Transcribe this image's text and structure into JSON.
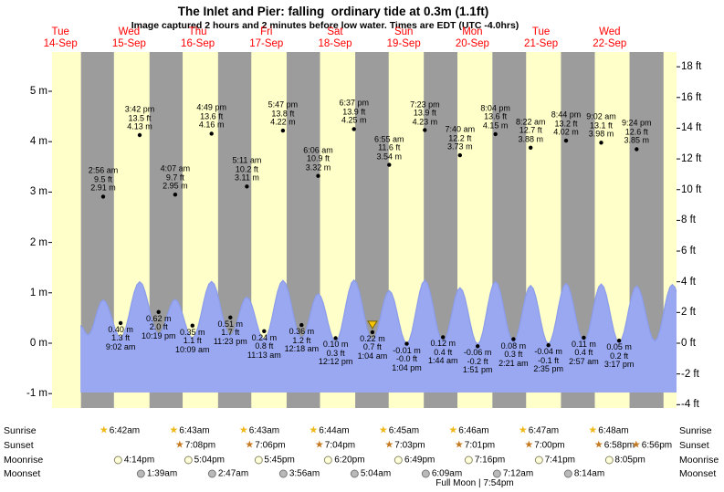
{
  "title": "The Inlet and Pier: falling  ordinary tide at 0.3m (1.1ft)",
  "subtitle": "Image captured 2 hours and 2 minutes before low water. Times are EDT (UTC -4.0hrs)",
  "days": [
    {
      "name": "Tue",
      "date": "14-Sep"
    },
    {
      "name": "Wed",
      "date": "15-Sep"
    },
    {
      "name": "Thu",
      "date": "16-Sep"
    },
    {
      "name": "Fri",
      "date": "17-Sep"
    },
    {
      "name": "Sat",
      "date": "18-Sep"
    },
    {
      "name": "Sun",
      "date": "19-Sep"
    },
    {
      "name": "Mon",
      "date": "20-Sep"
    },
    {
      "name": "Tue",
      "date": "21-Sep"
    },
    {
      "name": "Wed",
      "date": "22-Sep"
    }
  ],
  "chart_data": {
    "type": "area",
    "series_name": "tide height",
    "y_axis_left_labels": [
      "5 m",
      "4 m",
      "3 m",
      "2 m",
      "1 m",
      "0 m",
      "-1 m"
    ],
    "y_axis_right_labels": [
      "18 ft",
      "16 ft",
      "14 ft",
      "12 ft",
      "10 ft",
      "8 ft",
      "6 ft",
      "4 ft",
      "2 ft",
      "0 ft",
      "-2 ft",
      "-4 ft"
    ],
    "high_tides": [
      {
        "day_index": 1,
        "time": "2:56 am",
        "ft": "9.5 ft",
        "m": "2.91 m"
      },
      {
        "day_index": 1,
        "time": "3:42 pm",
        "ft": "13.5 ft",
        "m": "4.13 m"
      },
      {
        "day_index": 2,
        "time": "4:07 am",
        "ft": "9.7 ft",
        "m": "2.95 m"
      },
      {
        "day_index": 2,
        "time": "4:49 pm",
        "ft": "13.6 ft",
        "m": "4.16 m"
      },
      {
        "day_index": 3,
        "time": "5:11 am",
        "ft": "10.2 ft",
        "m": "3.11 m"
      },
      {
        "day_index": 3,
        "time": "5:47 pm",
        "ft": "13.8 ft",
        "m": "4.22 m"
      },
      {
        "day_index": 4,
        "time": "6:06 am",
        "ft": "10.9 ft",
        "m": "3.32 m"
      },
      {
        "day_index": 4,
        "time": "6:37 pm",
        "ft": "13.9 ft",
        "m": "4.25 m"
      },
      {
        "day_index": 5,
        "time": "6:55 am",
        "ft": "11.6 ft",
        "m": "3.54 m"
      },
      {
        "day_index": 5,
        "time": "7:23 pm",
        "ft": "13.9 ft",
        "m": "4.23 m"
      },
      {
        "day_index": 6,
        "time": "7:40 am",
        "ft": "12.2 ft",
        "m": "3.73 m"
      },
      {
        "day_index": 6,
        "time": "8:04 pm",
        "ft": "13.6 ft",
        "m": "4.15 m"
      },
      {
        "day_index": 7,
        "time": "8:22 am",
        "ft": "12.7 ft",
        "m": "3.88 m"
      },
      {
        "day_index": 7,
        "time": "8:44 pm",
        "ft": "13.2 ft",
        "m": "4.02 m"
      },
      {
        "day_index": 8,
        "time": "9:02 am",
        "ft": "13.1 ft",
        "m": "3.98 m"
      },
      {
        "day_index": 8,
        "time": "9:24 pm",
        "ft": "12.6 ft",
        "m": "3.85 m"
      }
    ],
    "low_tides": [
      {
        "day_index": 1,
        "time": "9:02 am",
        "ft": "1.3 ft",
        "m": "0.40 m"
      },
      {
        "day_index": 1,
        "time": "10:19 pm",
        "ft": "2.0 ft",
        "m": "0.62 m"
      },
      {
        "day_index": 2,
        "time": "10:09 am",
        "ft": "1.1 ft",
        "m": "0.35 m"
      },
      {
        "day_index": 2,
        "time": "11:23 pm",
        "ft": "1.7 ft",
        "m": "0.51 m"
      },
      {
        "day_index": 3,
        "time": "11:13 am",
        "ft": "0.8 ft",
        "m": "0.24 m"
      },
      {
        "day_index": 4,
        "time": "12:18 am",
        "ft": "1.2 ft",
        "m": "0.36 m"
      },
      {
        "day_index": 4,
        "time": "12:12 pm",
        "ft": "0.3 ft",
        "m": "0.10 m"
      },
      {
        "day_index": 5,
        "time": "1:04 am",
        "ft": "0.7 ft",
        "m": "0.22 m",
        "current": true
      },
      {
        "day_index": 5,
        "time": "1:04 pm",
        "ft": "-0.0 ft",
        "m": "-0.01 m"
      },
      {
        "day_index": 6,
        "time": "1:44 am",
        "ft": "0.4 ft",
        "m": "0.12 m"
      },
      {
        "day_index": 6,
        "time": "1:51 pm",
        "ft": "-0.2 ft",
        "m": "-0.06 m"
      },
      {
        "day_index": 7,
        "time": "2:21 am",
        "ft": "0.3 ft",
        "m": "0.08 m"
      },
      {
        "day_index": 7,
        "time": "2:35 pm",
        "ft": "-0.1 ft",
        "m": "-0.04 m"
      },
      {
        "day_index": 8,
        "time": "2:57 am",
        "ft": "0.4 ft",
        "m": "0.11 m"
      },
      {
        "day_index": 8,
        "time": "3:17 pm",
        "ft": "0.2 ft",
        "m": "0.05 m"
      }
    ],
    "curve_shape_points": {
      "before": [
        {
          "day_index": 0,
          "hour": 19.0,
          "height_m": 1.2
        },
        {
          "day_index": 0,
          "hour": 21.6,
          "height_m": 0.55
        }
      ],
      "after": [
        {
          "day_index": 9,
          "hour": 3.8,
          "height_m": 0.15
        },
        {
          "day_index": 9,
          "hour": 9.9,
          "height_m": 3.95
        },
        {
          "day_index": 9,
          "hour": 16.3,
          "height_m": 0.1
        }
      ]
    }
  },
  "astronomy": {
    "rows": [
      {
        "label": "Sunrise",
        "icon": "sunrise-star",
        "times": [
          "6:42am",
          "6:43am",
          "6:43am",
          "6:44am",
          "6:45am",
          "6:46am",
          "6:47am",
          "6:48am"
        ]
      },
      {
        "label": "Sunset",
        "icon": "sunset-star",
        "times": [
          "7:08pm",
          "7:06pm",
          "7:04pm",
          "7:03pm",
          "7:01pm",
          "7:00pm",
          "6:58pm",
          "6:56pm"
        ]
      },
      {
        "label": "Moonrise",
        "icon": "moonrise-circle",
        "times": [
          "4:14pm",
          "5:04pm",
          "5:45pm",
          "6:20pm",
          "6:49pm",
          "7:16pm",
          "7:41pm",
          "8:05pm"
        ]
      },
      {
        "label": "Moonset",
        "icon": "moonset-circle",
        "times": [
          "1:39am",
          "2:47am",
          "3:56am",
          "5:04am",
          "6:09am",
          "7:12am",
          "8:14am"
        ]
      }
    ],
    "moon_phase": "Full Moon | 7:54pm"
  },
  "colors": {
    "day_band": "#ffffc9",
    "night_band": "#9c9c9c",
    "tide_fill": "#99a8f0",
    "tide_edge": "#8b9ceb",
    "date_red": "#ff0000",
    "sunrise-star": "#f0b818",
    "sunset-star": "#c5781e",
    "moonrise-circle": "#ffffd9",
    "moonset-circle": "#b9b9b9",
    "current_marker": "#f6c700"
  }
}
